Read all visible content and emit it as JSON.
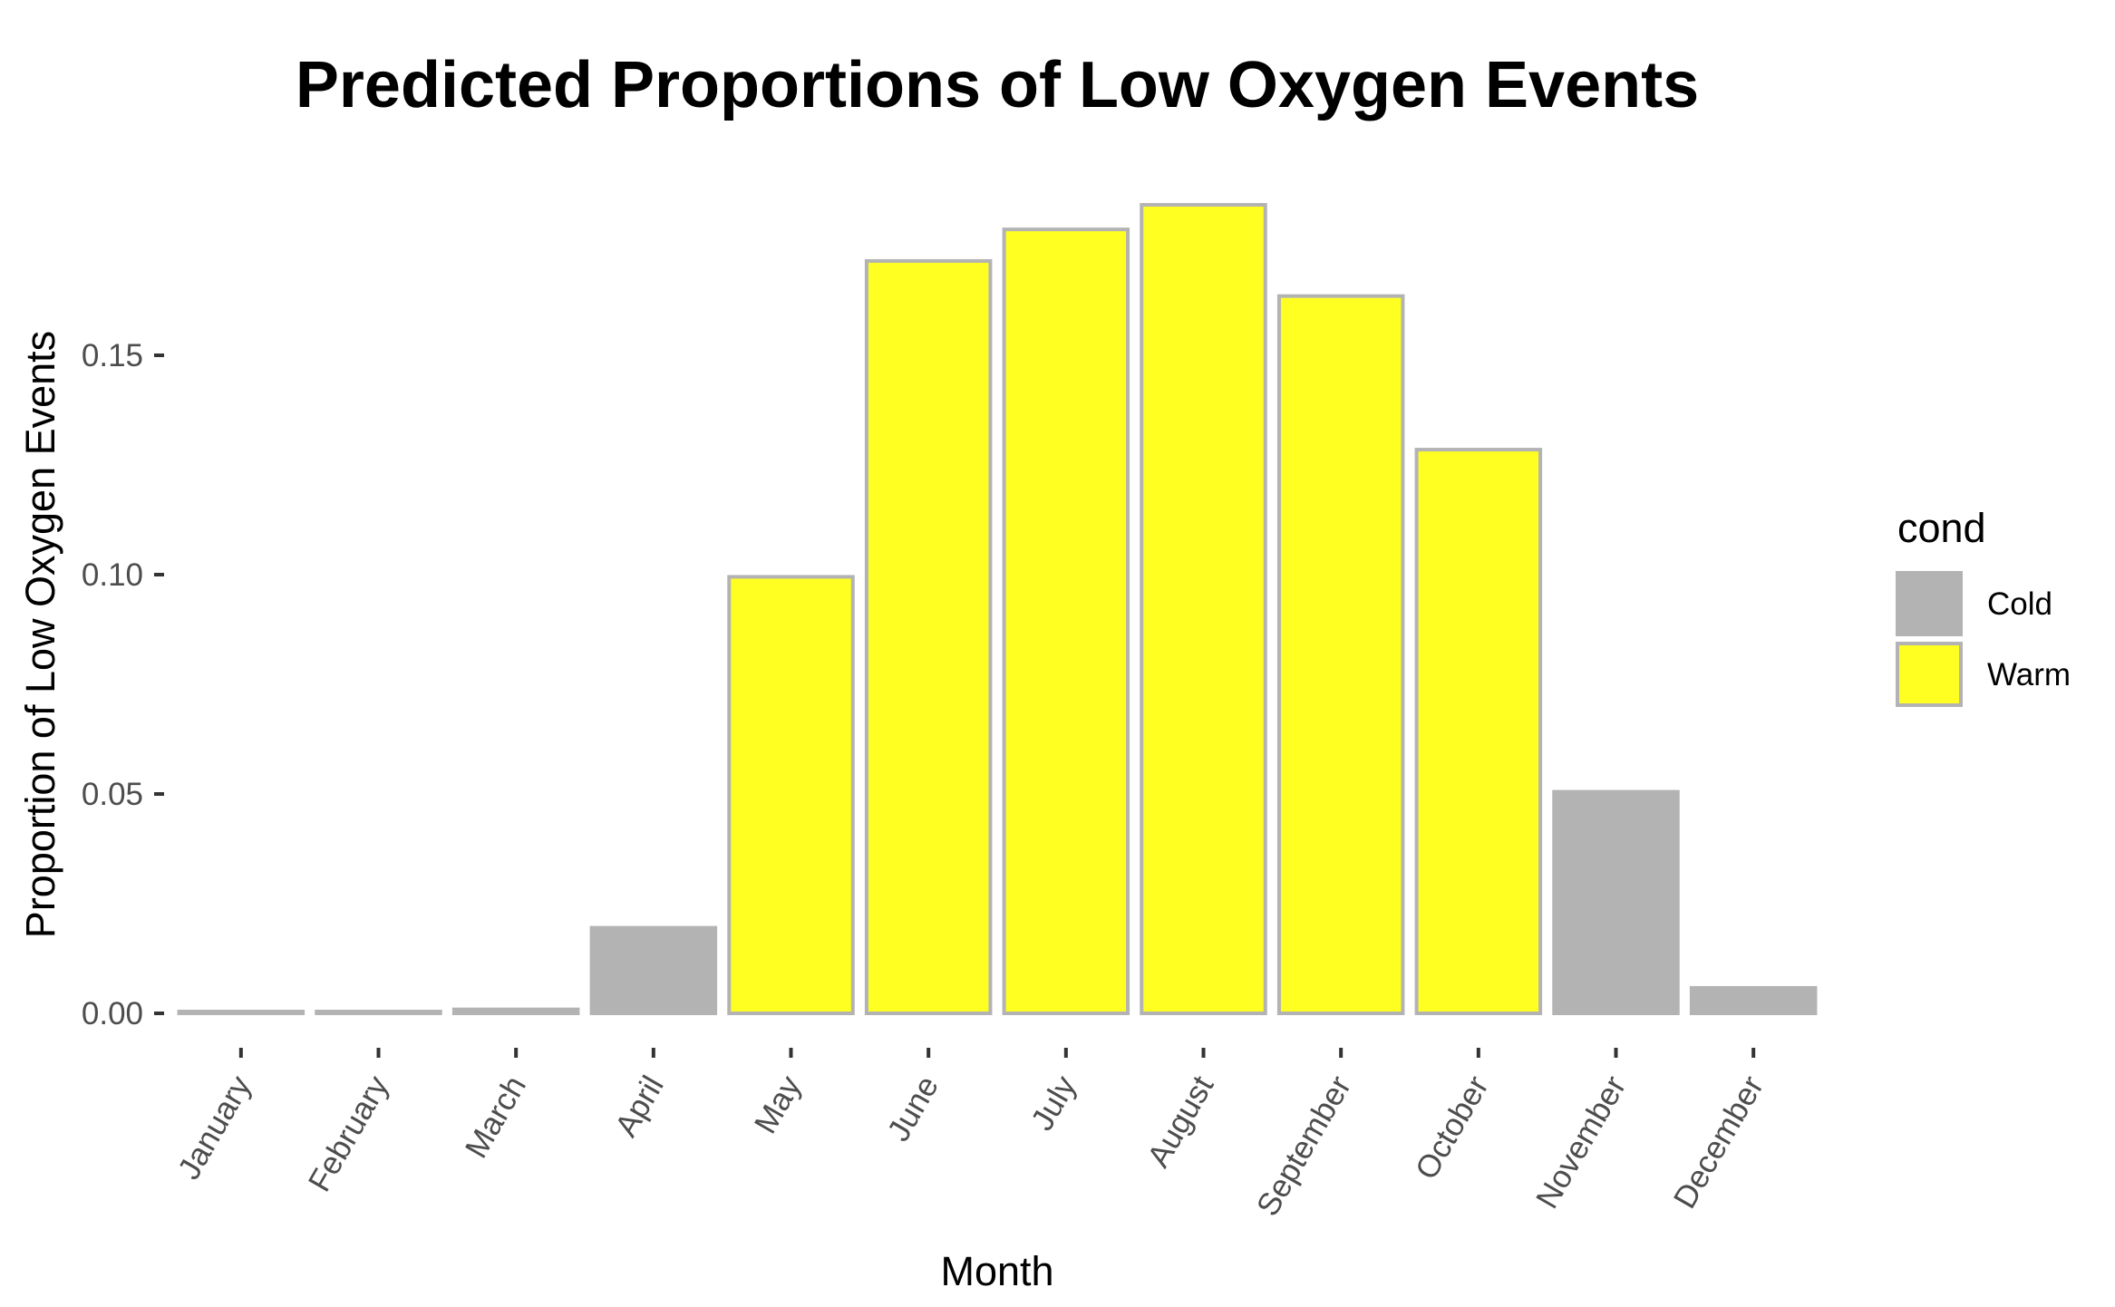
{
  "chart_data": {
    "type": "bar",
    "title": "Predicted Proportions of Low Oxygen Events",
    "xlabel": "Month",
    "ylabel": "Proportion of Low Oxygen Events",
    "categories": [
      "January",
      "February",
      "March",
      "April",
      "May",
      "June",
      "July",
      "August",
      "September",
      "October",
      "November",
      "December"
    ],
    "values": [
      0.0004,
      0.0004,
      0.0009,
      0.0195,
      0.0995,
      0.1715,
      0.1787,
      0.1843,
      0.1635,
      0.1285,
      0.0505,
      0.0058
    ],
    "condition": [
      "Cold",
      "Cold",
      "Cold",
      "Cold",
      "Warm",
      "Warm",
      "Warm",
      "Warm",
      "Warm",
      "Warm",
      "Cold",
      "Cold"
    ],
    "ylim": [
      0,
      0.19
    ],
    "yticks": [
      0.0,
      0.05,
      0.1,
      0.15
    ],
    "ytick_labels": [
      "0.00",
      "0.05",
      "0.10",
      "0.15"
    ],
    "grid": false,
    "legend": {
      "title": "cond",
      "placement": "right",
      "entries": [
        {
          "label": "Cold",
          "color": "#b3b3b3"
        },
        {
          "label": "Warm",
          "color": "#ffff22"
        }
      ]
    },
    "bar_outline_color": "#b3b3b3"
  }
}
